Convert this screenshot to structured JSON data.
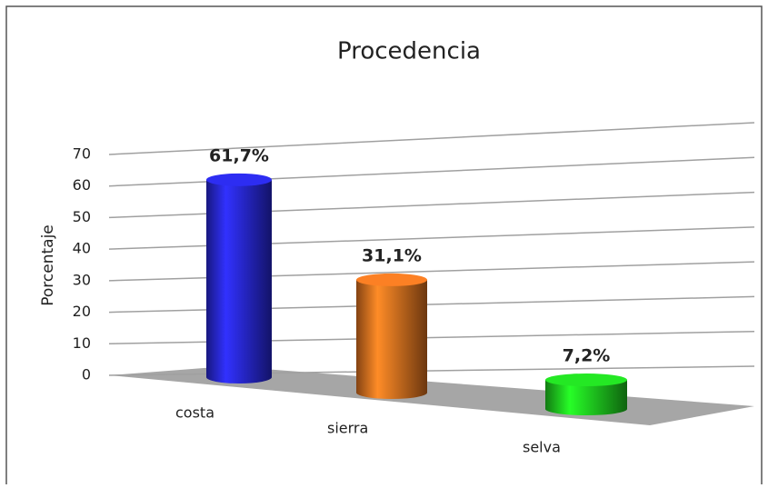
{
  "chart_data": {
    "type": "bar3d",
    "title": "Procedencia",
    "y_label": "Porcentaje",
    "categories": [
      "costa",
      "sierra",
      "selva"
    ],
    "values": [
      61.7,
      31.1,
      7.2
    ],
    "value_labels": [
      "61,7%",
      "31,1%",
      "7,2%"
    ],
    "colors": [
      "#2b2be6",
      "#f07a22",
      "#22dd22"
    ],
    "ylim": [
      0,
      70
    ],
    "yticks": [
      0,
      10,
      20,
      30,
      40,
      50,
      60,
      70
    ],
    "grid": true
  }
}
